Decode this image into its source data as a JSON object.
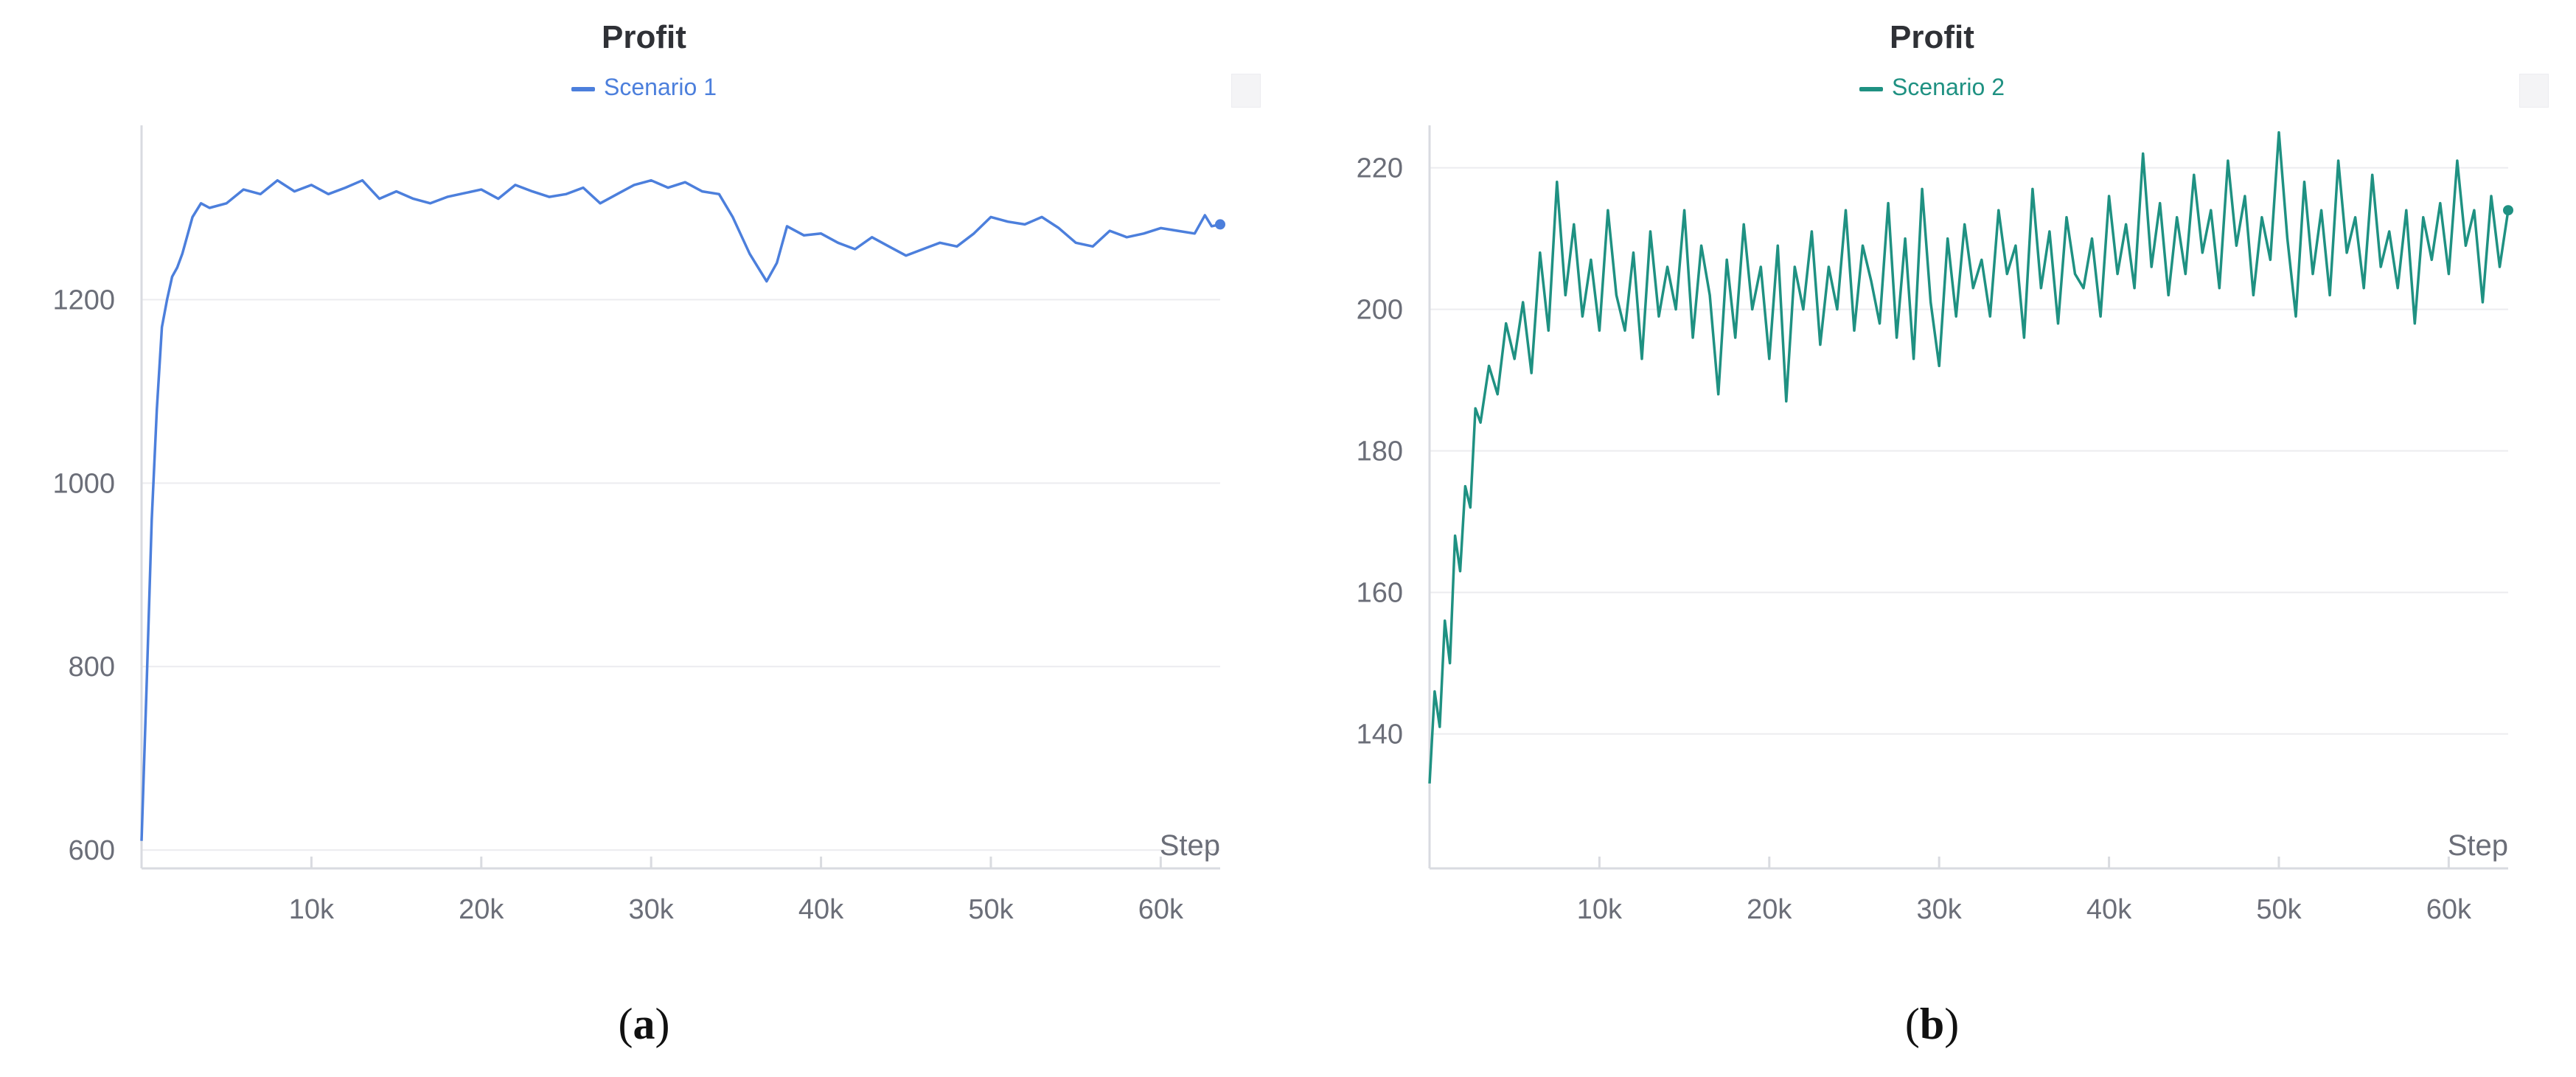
{
  "chart_data": [
    {
      "type": "line",
      "title": "Profit",
      "xlabel": "Step",
      "ylabel": "",
      "caption_letter": "a",
      "legend_placement": "top-center",
      "grid": true,
      "color": "#4c7fdc",
      "xlim": [
        0,
        63500
      ],
      "ylim": [
        580,
        1390
      ],
      "xticks": [
        10000,
        20000,
        30000,
        40000,
        50000,
        60000
      ],
      "xtick_labels": [
        "10k",
        "20k",
        "30k",
        "40k",
        "50k",
        "60k"
      ],
      "yticks": [
        600,
        800,
        1000,
        1200
      ],
      "ytick_labels": [
        "600",
        "800",
        "1000",
        "1200"
      ],
      "series": [
        {
          "name": "Scenario 1",
          "x": [
            0,
            300,
            600,
            900,
            1200,
            1500,
            1800,
            2100,
            2400,
            2700,
            3000,
            3500,
            4000,
            5000,
            6000,
            7000,
            8000,
            9000,
            10000,
            11000,
            12000,
            13000,
            14000,
            15000,
            16000,
            17000,
            18000,
            19000,
            20000,
            21000,
            22000,
            23000,
            24000,
            25000,
            26000,
            27000,
            28000,
            29000,
            30000,
            31000,
            32000,
            33000,
            34000,
            34800,
            35300,
            35800,
            36300,
            36800,
            37400,
            38000,
            39000,
            40000,
            41000,
            42000,
            43000,
            44000,
            45000,
            46000,
            47000,
            48000,
            49000,
            50000,
            51000,
            52000,
            53000,
            54000,
            55000,
            56000,
            57000,
            58000,
            59000,
            60000,
            61000,
            62000,
            62600,
            63000,
            63500
          ],
          "y": [
            610,
            780,
            960,
            1080,
            1170,
            1200,
            1225,
            1235,
            1250,
            1270,
            1290,
            1305,
            1300,
            1305,
            1320,
            1315,
            1330,
            1318,
            1325,
            1315,
            1322,
            1330,
            1310,
            1318,
            1310,
            1305,
            1312,
            1316,
            1320,
            1310,
            1325,
            1318,
            1312,
            1315,
            1322,
            1305,
            1315,
            1325,
            1330,
            1322,
            1328,
            1318,
            1315,
            1290,
            1270,
            1250,
            1235,
            1220,
            1240,
            1280,
            1270,
            1272,
            1262,
            1255,
            1268,
            1258,
            1248,
            1255,
            1262,
            1258,
            1272,
            1290,
            1285,
            1282,
            1290,
            1278,
            1262,
            1258,
            1275,
            1268,
            1272,
            1278,
            1275,
            1272,
            1292,
            1280,
            1282
          ]
        }
      ]
    },
    {
      "type": "line",
      "title": "Profit",
      "xlabel": "Step",
      "ylabel": "",
      "caption_letter": "b",
      "legend_placement": "top-center",
      "grid": true,
      "color": "#1f9182",
      "xlim": [
        0,
        63500
      ],
      "ylim": [
        121,
        226
      ],
      "xticks": [
        10000,
        20000,
        30000,
        40000,
        50000,
        60000
      ],
      "xtick_labels": [
        "10k",
        "20k",
        "30k",
        "40k",
        "50k",
        "60k"
      ],
      "yticks": [
        140,
        160,
        180,
        200,
        220
      ],
      "ytick_labels": [
        "140",
        "160",
        "180",
        "200",
        "220"
      ],
      "series": [
        {
          "name": "Scenario 2",
          "x": [
            0,
            300,
            600,
            900,
            1200,
            1500,
            1800,
            2100,
            2400,
            2700,
            3000,
            3500,
            4000,
            4500,
            5000,
            5500,
            6000,
            6500,
            7000,
            7500,
            8000,
            8500,
            9000,
            9500,
            10000,
            10500,
            11000,
            11500,
            12000,
            12500,
            13000,
            13500,
            14000,
            14500,
            15000,
            15500,
            16000,
            16500,
            17000,
            17500,
            18000,
            18500,
            19000,
            19500,
            20000,
            20500,
            21000,
            21500,
            22000,
            22500,
            23000,
            23500,
            24000,
            24500,
            25000,
            25500,
            26000,
            26500,
            27000,
            27500,
            28000,
            28500,
            29000,
            29500,
            30000,
            30500,
            31000,
            31500,
            32000,
            32500,
            33000,
            33500,
            34000,
            34500,
            35000,
            35500,
            36000,
            36500,
            37000,
            37500,
            38000,
            38500,
            39000,
            39500,
            40000,
            40500,
            41000,
            41500,
            42000,
            42500,
            43000,
            43500,
            44000,
            44500,
            45000,
            45500,
            46000,
            46500,
            47000,
            47500,
            48000,
            48500,
            49000,
            49500,
            50000,
            50500,
            51000,
            51500,
            52000,
            52500,
            53000,
            53500,
            54000,
            54500,
            55000,
            55500,
            56000,
            56500,
            57000,
            57500,
            58000,
            58500,
            59000,
            59500,
            60000,
            60500,
            61000,
            61500,
            62000,
            62500,
            63000,
            63500
          ],
          "y": [
            133,
            146,
            141,
            156,
            150,
            168,
            163,
            175,
            172,
            186,
            184,
            192,
            188,
            198,
            193,
            201,
            191,
            208,
            197,
            218,
            202,
            212,
            199,
            207,
            197,
            214,
            202,
            197,
            208,
            193,
            211,
            199,
            206,
            200,
            214,
            196,
            209,
            202,
            188,
            207,
            196,
            212,
            200,
            206,
            193,
            209,
            187,
            206,
            200,
            211,
            195,
            206,
            200,
            214,
            197,
            209,
            204,
            198,
            215,
            196,
            210,
            193,
            217,
            201,
            192,
            210,
            199,
            212,
            203,
            207,
            199,
            214,
            205,
            209,
            196,
            217,
            203,
            211,
            198,
            213,
            205,
            203,
            210,
            199,
            216,
            205,
            212,
            203,
            222,
            206,
            215,
            202,
            213,
            205,
            219,
            208,
            214,
            203,
            221,
            209,
            216,
            202,
            213,
            207,
            225,
            210,
            199,
            218,
            205,
            214,
            202,
            221,
            208,
            213,
            203,
            219,
            206,
            211,
            203,
            214,
            198,
            213,
            207,
            215,
            205,
            221,
            209,
            214,
            201,
            216,
            206,
            214
          ]
        }
      ]
    }
  ]
}
